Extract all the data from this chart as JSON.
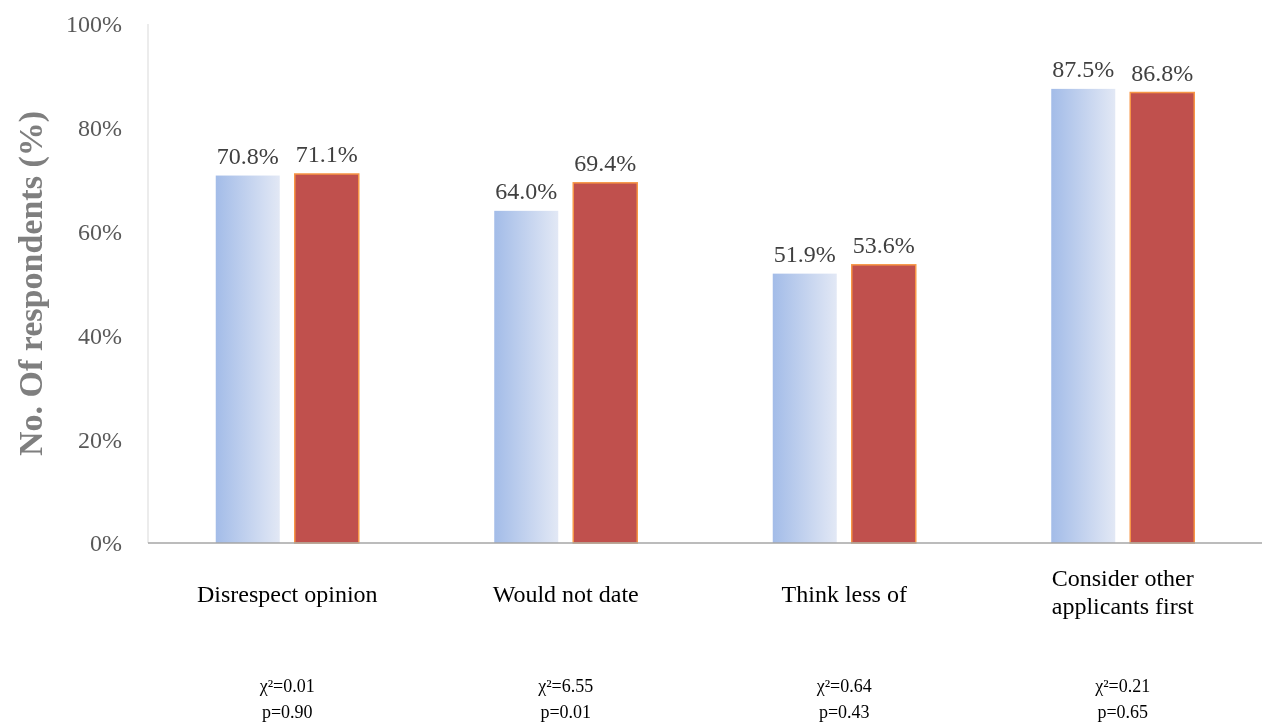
{
  "chart_data": {
    "type": "bar",
    "ylabel": "No. Of respondents (%)",
    "categories": [
      "Disrespect opinion",
      "Would not date",
      "Think less of",
      "Consider other applicants first"
    ],
    "series": [
      {
        "color": "#a3bce8",
        "values": [
          70.8,
          64.0,
          51.9,
          87.5
        ],
        "value_labels": [
          "70.8%",
          "64.0%",
          "51.9%",
          "87.5%"
        ]
      },
      {
        "color": "#c0504d",
        "values": [
          71.1,
          69.4,
          53.6,
          86.8
        ],
        "value_labels": [
          "71.1%",
          "69.4%",
          "53.6%",
          "86.8%"
        ]
      }
    ],
    "ylim": [
      0,
      100
    ],
    "yticks": [
      {
        "value": 0,
        "label": "0%"
      },
      {
        "value": 20,
        "label": "20%"
      },
      {
        "value": 40,
        "label": "40%"
      },
      {
        "value": 60,
        "label": "60%"
      },
      {
        "value": 80,
        "label": "80%"
      },
      {
        "value": 100,
        "label": "100%"
      }
    ],
    "grid": false,
    "annotations": [
      "χ²=0.01\np=0.90",
      "χ²=6.55\np=0.01",
      "χ²=0.64\np=0.43",
      "χ²=0.21\np=0.65"
    ]
  }
}
